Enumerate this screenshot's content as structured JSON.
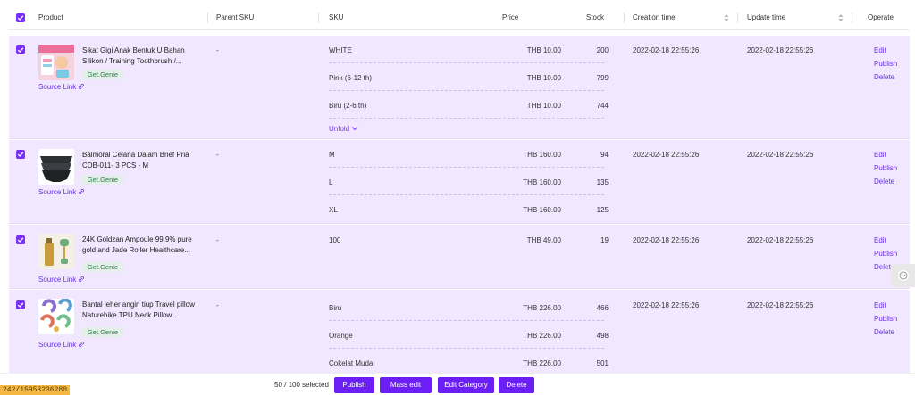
{
  "header": {
    "product": "Product",
    "parent_sku": "Parent SKU",
    "sku": "SKU",
    "price": "Price",
    "stock": "Stock",
    "creation_time": "Creation time",
    "update_time": "Update time",
    "operate": "Operate"
  },
  "rows": [
    {
      "name": "Sikat Gigi Anak Bentuk U Bahan Silikon / Training Toothbrush /...",
      "tag": "Get.Genie",
      "source_link": "Source Link",
      "parent_sku": "-",
      "variants": [
        {
          "sku": "WHITE",
          "price": "THB 10.00",
          "stock": "200"
        },
        {
          "sku": "Pink (6-12 th)",
          "price": "THB 10.00",
          "stock": "799"
        },
        {
          "sku": "Biru (2-6 th)",
          "price": "THB 10.00",
          "stock": "744"
        }
      ],
      "unfold": "Unfold",
      "creation_time": "2022-02-18 22:55:26",
      "update_time": "2022-02-18 22:55:26"
    },
    {
      "name": "Balmoral Celana Dalam Brief Pria CDB-011- 3 PCS - M",
      "tag": "Get.Genie",
      "source_link": "Source Link",
      "parent_sku": "-",
      "variants": [
        {
          "sku": "M",
          "price": "THB 160.00",
          "stock": "94"
        },
        {
          "sku": "L",
          "price": "THB 160.00",
          "stock": "135"
        },
        {
          "sku": "XL",
          "price": "THB 160.00",
          "stock": "125"
        }
      ],
      "creation_time": "2022-02-18 22:55:26",
      "update_time": "2022-02-18 22:55:26"
    },
    {
      "name": "24K Goldzan Ampoule 99.9% pure gold and Jade Roller Healthcare...",
      "tag": "Get.Genie",
      "source_link": "Source Link",
      "parent_sku": "-",
      "variants": [
        {
          "sku": "100",
          "price": "THB 49.00",
          "stock": "19"
        }
      ],
      "creation_time": "2022-02-18 22:55:26",
      "update_time": "2022-02-18 22:55:26"
    },
    {
      "name": "Bantal leher angin tiup Travel pillow Naturehike TPU Neck Pillow...",
      "tag": "Get.Genie",
      "source_link": "Source Link",
      "parent_sku": "-",
      "variants": [
        {
          "sku": "Biru",
          "price": "THB 226.00",
          "stock": "466"
        },
        {
          "sku": "Orange",
          "price": "THB 226.00",
          "stock": "498"
        },
        {
          "sku": "Cokelat Muda",
          "price": "THB 226.00",
          "stock": "501"
        }
      ],
      "creation_time": "2022-02-18 22:55:26",
      "update_time": "2022-02-18 22:55:26"
    }
  ],
  "ops": {
    "edit": "Edit",
    "publish": "Publish",
    "delete": "Delete"
  },
  "bottom": {
    "selected": "50 / 100 selected",
    "publish": "Publish",
    "mass_edit": "Mass edit",
    "edit_category": "Edit Category",
    "delete": "Delete"
  },
  "corner_id": "242/15953236280",
  "colors": {
    "accent": "#6b1ff5",
    "row_bg": "#f1e8ff",
    "tag_bg": "#e3efe8",
    "tag_text": "#2d7a4a"
  },
  "icons": [
    "checkbox-checked-icon",
    "sort-icon",
    "link-icon",
    "chevron-down-icon",
    "chat-widget-icon"
  ]
}
